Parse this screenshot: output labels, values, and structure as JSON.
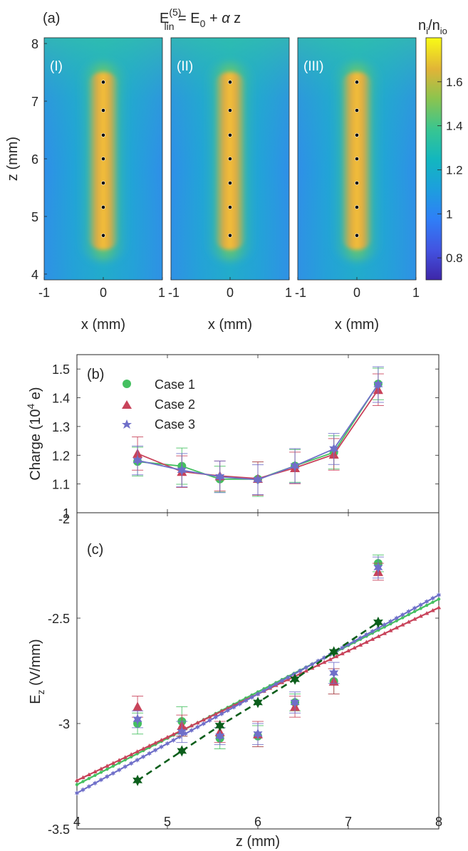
{
  "chart_data": [
    {
      "type": "heatmap",
      "panel_label": "(a)",
      "title": {
        "main": "E",
        "superscript": "(5)",
        "subscript": "lin",
        "rest_1": " = E",
        "rest_1_sub": "0",
        "rest_2": " + ",
        "alpha": "α",
        "rest_3": " z"
      },
      "subpanels": [
        "(I)",
        "(II)",
        "(III)"
      ],
      "xlabel": "x (mm)",
      "ylabel": "z (mm)",
      "xlim": [
        -1,
        1
      ],
      "ylim": [
        3.9,
        8.1
      ],
      "xticks": [
        "-1",
        "0",
        "1"
      ],
      "yticks": [
        "4",
        "5",
        "6",
        "7",
        "8"
      ],
      "colorbar": {
        "label": "n",
        "label_sub_1": "i",
        "label_mid": "/n",
        "label_sub_2": "io",
        "range": [
          0.7,
          1.8
        ],
        "ticks": [
          "0.8",
          "1",
          "1.2",
          "1.4",
          "1.6"
        ]
      },
      "particle_x": 0,
      "particle_z": [
        4.67,
        5.16,
        5.58,
        6.0,
        6.41,
        6.84,
        7.33
      ],
      "colormap": "parula"
    },
    {
      "type": "line",
      "panel_label": "(b)",
      "ylabel": "Charge (10",
      "ylabel_sup": "4",
      "ylabel_end": " e)",
      "xlim": [
        4,
        8
      ],
      "ylim": [
        1,
        1.55
      ],
      "yticks": [
        "1",
        "1.1",
        "1.2",
        "1.3",
        "1.4",
        "1.5"
      ],
      "x": [
        4.67,
        5.16,
        5.58,
        6.0,
        6.41,
        6.84,
        7.33
      ],
      "series": [
        {
          "name": "Case 1",
          "marker": "circle",
          "color": "#44c060",
          "values": [
            1.178,
            1.162,
            1.117,
            1.117,
            1.163,
            1.21,
            1.448
          ],
          "errors": [
            0.05,
            0.063,
            0.045,
            0.06,
            0.057,
            0.058,
            0.055
          ]
        },
        {
          "name": "Case 2",
          "marker": "triangle",
          "color": "#c8435a",
          "values": [
            1.206,
            1.143,
            1.128,
            1.119,
            1.156,
            1.203,
            1.428
          ],
          "errors": [
            0.058,
            0.055,
            0.052,
            0.058,
            0.055,
            0.055,
            0.055
          ]
        },
        {
          "name": "Case 3",
          "marker": "star",
          "color": "#6f6fc9",
          "values": [
            1.182,
            1.148,
            1.125,
            1.115,
            1.163,
            1.222,
            1.446
          ],
          "errors": [
            0.05,
            0.058,
            0.055,
            0.052,
            0.06,
            0.054,
            0.062
          ]
        }
      ]
    },
    {
      "type": "scatter",
      "panel_label": "(c)",
      "ylabel": "E",
      "ylabel_sub": "z",
      "ylabel_end": " (V/mm)",
      "xlabel": "z (mm)",
      "xlim": [
        4,
        8
      ],
      "ylim": [
        -3.5,
        -2
      ],
      "xticks": [
        "4",
        "5",
        "6",
        "7",
        "8"
      ],
      "yticks": [
        "-3.5",
        "-3",
        "-2.5",
        "-2"
      ],
      "x": [
        4.67,
        5.16,
        5.58,
        6.0,
        6.41,
        6.84,
        7.33
      ],
      "series": [
        {
          "name": "Case 1",
          "marker": "circle",
          "color": "#44c060",
          "values": [
            -3.0,
            -2.99,
            -3.07,
            -3.06,
            -2.9,
            -2.8,
            -2.24
          ],
          "errors": [
            0.05,
            0.07,
            0.05,
            0.05,
            0.04,
            0.06,
            0.04
          ],
          "fit": [
            -3.29,
            -2.41
          ]
        },
        {
          "name": "Case 2",
          "marker": "triangle",
          "color": "#c8435a",
          "values": [
            -2.92,
            -3.01,
            -3.04,
            -3.05,
            -2.92,
            -2.8,
            -2.28
          ],
          "errors": [
            0.05,
            0.05,
            0.05,
            0.06,
            0.05,
            0.06,
            0.04
          ],
          "fit": [
            -3.27,
            -2.45
          ]
        },
        {
          "name": "Case 3",
          "marker": "star",
          "color": "#6f6fc9",
          "values": [
            -2.98,
            -3.04,
            -3.06,
            -3.05,
            -2.9,
            -2.76,
            -2.26
          ],
          "errors": [
            0.04,
            0.05,
            0.04,
            0.05,
            0.05,
            0.05,
            0.05
          ],
          "fit": [
            -3.33,
            -2.39
          ]
        },
        {
          "name": "",
          "marker": "hexagram",
          "color": "#0b5e1b",
          "dashed": true,
          "values": [
            -3.27,
            -3.13,
            -3.01,
            -2.9,
            -2.79,
            -2.66,
            -2.52
          ]
        }
      ]
    }
  ]
}
